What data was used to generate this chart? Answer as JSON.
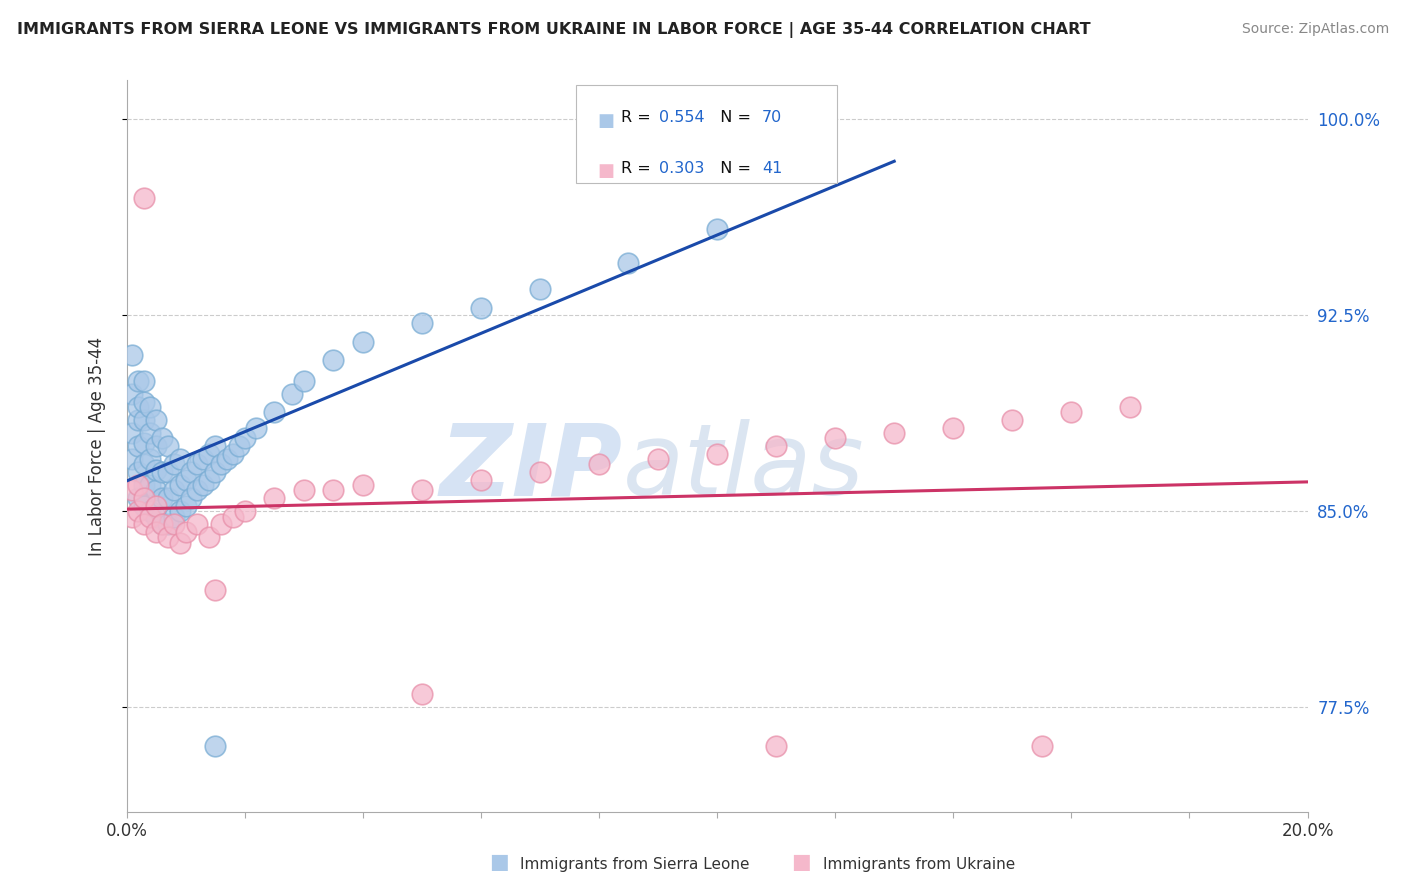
{
  "title": "IMMIGRANTS FROM SIERRA LEONE VS IMMIGRANTS FROM UKRAINE IN LABOR FORCE | AGE 35-44 CORRELATION CHART",
  "source": "Source: ZipAtlas.com",
  "ylabel": "In Labor Force | Age 35-44",
  "ytick_values": [
    0.775,
    0.85,
    0.925,
    1.0
  ],
  "ytick_labels": [
    "77.5%",
    "85.0%",
    "92.5%",
    "100.0%"
  ],
  "xlim": [
    0.0,
    0.2
  ],
  "ylim": [
    0.735,
    1.015
  ],
  "legend_R1": "0.554",
  "legend_N1": "70",
  "legend_R2": "0.303",
  "legend_N2": "41",
  "blue_color": "#aac8e8",
  "blue_edge": "#7aadd4",
  "pink_color": "#f5b8cb",
  "pink_edge": "#e890aa",
  "trend_blue": "#1a4aaa",
  "trend_pink": "#cc3366",
  "watermark_color": "#d0dff0",
  "sl_x": [
    0.001,
    0.001,
    0.001,
    0.001,
    0.002,
    0.002,
    0.002,
    0.002,
    0.002,
    0.002,
    0.003,
    0.003,
    0.003,
    0.003,
    0.003,
    0.003,
    0.003,
    0.004,
    0.004,
    0.004,
    0.004,
    0.004,
    0.005,
    0.005,
    0.005,
    0.005,
    0.005,
    0.006,
    0.006,
    0.006,
    0.006,
    0.007,
    0.007,
    0.007,
    0.007,
    0.008,
    0.008,
    0.008,
    0.009,
    0.009,
    0.009,
    0.01,
    0.01,
    0.011,
    0.011,
    0.012,
    0.012,
    0.013,
    0.013,
    0.014,
    0.014,
    0.015,
    0.015,
    0.016,
    0.017,
    0.018,
    0.019,
    0.02,
    0.022,
    0.025,
    0.028,
    0.03,
    0.035,
    0.04,
    0.05,
    0.06,
    0.07,
    0.085,
    0.1,
    0.015
  ],
  "sl_y": [
    0.87,
    0.88,
    0.895,
    0.91,
    0.855,
    0.865,
    0.875,
    0.885,
    0.89,
    0.9,
    0.852,
    0.86,
    0.868,
    0.876,
    0.885,
    0.892,
    0.9,
    0.85,
    0.86,
    0.87,
    0.88,
    0.89,
    0.848,
    0.858,
    0.866,
    0.875,
    0.885,
    0.845,
    0.855,
    0.865,
    0.878,
    0.845,
    0.855,
    0.865,
    0.875,
    0.848,
    0.858,
    0.868,
    0.85,
    0.86,
    0.87,
    0.852,
    0.862,
    0.855,
    0.865,
    0.858,
    0.868,
    0.86,
    0.87,
    0.862,
    0.872,
    0.865,
    0.875,
    0.868,
    0.87,
    0.872,
    0.875,
    0.878,
    0.882,
    0.888,
    0.895,
    0.9,
    0.908,
    0.915,
    0.922,
    0.928,
    0.935,
    0.945,
    0.958,
    0.76
  ],
  "uk_x": [
    0.001,
    0.001,
    0.002,
    0.002,
    0.003,
    0.003,
    0.004,
    0.005,
    0.005,
    0.006,
    0.007,
    0.008,
    0.009,
    0.01,
    0.012,
    0.014,
    0.016,
    0.018,
    0.02,
    0.025,
    0.03,
    0.035,
    0.04,
    0.05,
    0.06,
    0.07,
    0.08,
    0.09,
    0.1,
    0.11,
    0.12,
    0.13,
    0.14,
    0.15,
    0.16,
    0.17,
    0.003,
    0.015,
    0.05,
    0.11,
    0.155
  ],
  "uk_y": [
    0.848,
    0.858,
    0.85,
    0.86,
    0.845,
    0.855,
    0.848,
    0.842,
    0.852,
    0.845,
    0.84,
    0.845,
    0.838,
    0.842,
    0.845,
    0.84,
    0.845,
    0.848,
    0.85,
    0.855,
    0.858,
    0.858,
    0.86,
    0.858,
    0.862,
    0.865,
    0.868,
    0.87,
    0.872,
    0.875,
    0.878,
    0.88,
    0.882,
    0.885,
    0.888,
    0.89,
    0.97,
    0.82,
    0.78,
    0.76,
    0.76
  ]
}
